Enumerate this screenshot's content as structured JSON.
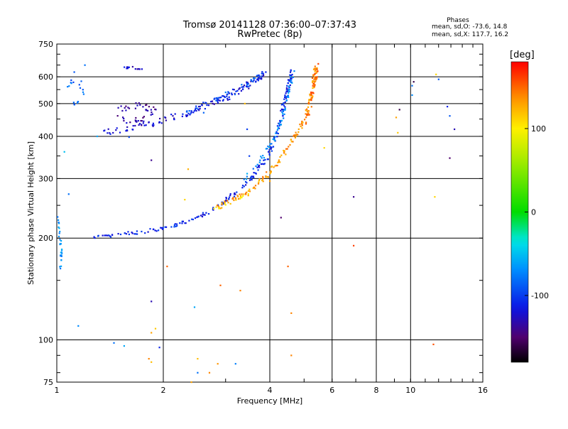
{
  "chart_data": {
    "type": "scatter",
    "title": "Tromsø 20141128 07:36:00–07:37:43",
    "subtitle": "RwPretec (8p)",
    "xlabel": "Frequency [MHz]",
    "ylabel": "Stationary phase Virtual Height [km]",
    "xscale": "log",
    "yscale": "log",
    "xlim": [
      1,
      16
    ],
    "ylim": [
      75,
      750
    ],
    "x_ticks": [
      1,
      2,
      4,
      6,
      8,
      10,
      16
    ],
    "y_ticks": [
      75,
      100,
      200,
      300,
      400,
      500,
      600,
      750
    ],
    "grid": true,
    "colorbar": {
      "label": "[deg]",
      "range": [
        -180,
        180
      ],
      "ticks": [
        100,
        0,
        -100
      ]
    },
    "phase_stats": {
      "title": "Phases",
      "o_mode": "mean, sd,O: -73.6, 14.8",
      "x_mode": "mean, sd,X: 117.7, 16.2"
    },
    "traces": [
      {
        "name": "",
        "phase": -110,
        "spread_f": 0.012,
        "spread_h": 0.012,
        "per_segment": 14,
        "points": [
          [
            1.25,
            200
          ],
          [
            1.5,
            205
          ],
          [
            1.8,
            210
          ],
          [
            2.1,
            216
          ],
          [
            2.4,
            226
          ],
          [
            2.7,
            240
          ],
          [
            3.0,
            258
          ],
          [
            3.3,
            280
          ],
          [
            3.6,
            305
          ],
          [
            3.9,
            340
          ],
          [
            4.1,
            380
          ],
          [
            4.25,
            430
          ],
          [
            4.35,
            480
          ],
          [
            4.45,
            530
          ],
          [
            4.55,
            580
          ],
          [
            4.6,
            630
          ]
        ]
      },
      {
        "name": "",
        "phase": -70,
        "spread_f": 0.01,
        "spread_h": 0.012,
        "per_segment": 10,
        "points": [
          [
            3.4,
            300
          ],
          [
            3.8,
            345
          ],
          [
            4.1,
            390
          ],
          [
            4.3,
            440
          ],
          [
            4.45,
            500
          ],
          [
            4.55,
            560
          ],
          [
            4.65,
            620
          ]
        ]
      },
      {
        "name": "",
        "phase": 135,
        "spread_f": 0.012,
        "spread_h": 0.012,
        "per_segment": 14,
        "points": [
          [
            2.8,
            248
          ],
          [
            3.2,
            262
          ],
          [
            3.6,
            282
          ],
          [
            3.9,
            305
          ],
          [
            4.2,
            335
          ],
          [
            4.5,
            370
          ],
          [
            4.8,
            410
          ],
          [
            5.05,
            460
          ],
          [
            5.2,
            510
          ],
          [
            5.3,
            560
          ],
          [
            5.35,
            600
          ],
          [
            5.4,
            640
          ]
        ]
      },
      {
        "name": "",
        "phase": 112,
        "spread_f": 0.01,
        "spread_h": 0.01,
        "per_segment": 8,
        "points": [
          [
            2.75,
            242
          ],
          [
            3.1,
            255
          ],
          [
            3.5,
            272
          ]
        ]
      },
      {
        "name": "",
        "phase": 150,
        "spread_f": 0.012,
        "spread_h": 0.02,
        "per_segment": 8,
        "points": [
          [
            5.05,
            440
          ],
          [
            5.2,
            500
          ],
          [
            5.3,
            550
          ],
          [
            5.4,
            600
          ],
          [
            5.45,
            650
          ]
        ]
      },
      {
        "name": "",
        "phase": -120,
        "spread_f": 0.015,
        "spread_h": 0.02,
        "per_segment": 14,
        "points": [
          [
            1.35,
            410
          ],
          [
            1.6,
            425
          ],
          [
            1.9,
            440
          ],
          [
            2.2,
            460
          ],
          [
            2.5,
            480
          ],
          [
            2.8,
            505
          ],
          [
            3.1,
            530
          ],
          [
            3.4,
            560
          ],
          [
            3.7,
            590
          ],
          [
            3.9,
            620
          ]
        ]
      },
      {
        "name": "",
        "phase": -95,
        "spread_f": 0.012,
        "spread_h": 0.02,
        "per_segment": 10,
        "points": [
          [
            2.3,
            470
          ],
          [
            2.6,
            495
          ],
          [
            2.9,
            515
          ],
          [
            3.2,
            545
          ],
          [
            3.5,
            575
          ],
          [
            3.8,
            610
          ]
        ]
      },
      {
        "name": "",
        "phase": -135,
        "spread_f": 0.02,
        "spread_h": 0.025,
        "per_segment": 12,
        "points": [
          [
            1.5,
            480
          ],
          [
            1.7,
            500
          ],
          [
            1.9,
            470
          ],
          [
            1.7,
            440
          ],
          [
            1.5,
            450
          ]
        ]
      },
      {
        "name": "",
        "phase": -125,
        "spread_f": 0.01,
        "spread_h": 0.008,
        "per_segment": 6,
        "points": [
          [
            1.5,
            640
          ],
          [
            1.65,
            638
          ],
          [
            1.75,
            630
          ]
        ]
      },
      {
        "name": "",
        "phase": -65,
        "spread_f": 0.006,
        "spread_h": 0.03,
        "per_segment": 10,
        "points": [
          [
            1.01,
            230
          ],
          [
            1.02,
            200
          ],
          [
            1.03,
            180
          ],
          [
            1.02,
            160
          ]
        ]
      },
      {
        "name": "",
        "phase": -85,
        "spread_f": 0.01,
        "spread_h": 0.02,
        "per_segment": 6,
        "points": [
          [
            1.05,
            550
          ],
          [
            1.15,
            600
          ],
          [
            1.2,
            520
          ],
          [
            1.1,
            500
          ]
        ]
      }
    ],
    "scatter_points": [
      [
        1.3,
        400,
        -60
      ],
      [
        1.05,
        360,
        -50
      ],
      [
        1.08,
        270,
        -80
      ],
      [
        1.12,
        620,
        -90
      ],
      [
        1.45,
        98,
        -80
      ],
      [
        1.55,
        96,
        -60
      ],
      [
        1.85,
        105,
        130
      ],
      [
        1.9,
        108,
        115
      ],
      [
        1.82,
        88,
        140
      ],
      [
        1.85,
        86,
        120
      ],
      [
        1.95,
        95,
        -110
      ],
      [
        1.85,
        130,
        -130
      ],
      [
        1.85,
        340,
        -140
      ],
      [
        2.05,
        165,
        150
      ],
      [
        2.3,
        260,
        110
      ],
      [
        2.35,
        320,
        125
      ],
      [
        2.4,
        75,
        130
      ],
      [
        2.5,
        88,
        120
      ],
      [
        2.5,
        80,
        -80
      ],
      [
        2.6,
        470,
        -85
      ],
      [
        2.7,
        80,
        140
      ],
      [
        2.9,
        245,
        130
      ],
      [
        2.9,
        145,
        150
      ],
      [
        3.2,
        85,
        -75
      ],
      [
        3.3,
        140,
        140
      ],
      [
        2.85,
        85,
        135
      ],
      [
        2.45,
        125,
        -60
      ],
      [
        3.5,
        350,
        -100
      ],
      [
        3.4,
        500,
        120
      ],
      [
        4.0,
        295,
        130
      ],
      [
        4.3,
        230,
        -150
      ],
      [
        4.5,
        165,
        150
      ],
      [
        4.6,
        120,
        140
      ],
      [
        4.6,
        90,
        140
      ],
      [
        5.7,
        370,
        110
      ],
      [
        6.9,
        265,
        -140
      ],
      [
        6.9,
        190,
        160
      ],
      [
        9.3,
        480,
        -160
      ],
      [
        9.1,
        455,
        130
      ],
      [
        9.2,
        410,
        115
      ],
      [
        10.1,
        565,
        -80
      ],
      [
        10.1,
        530,
        -70
      ],
      [
        10.2,
        580,
        -160
      ],
      [
        11.8,
        610,
        110
      ],
      [
        12.0,
        590,
        -90
      ],
      [
        11.7,
        265,
        110
      ],
      [
        11.6,
        97,
        155
      ],
      [
        12.9,
        460,
        -90
      ],
      [
        12.9,
        345,
        -150
      ],
      [
        13.3,
        420,
        -130
      ],
      [
        12.7,
        490,
        -110
      ],
      [
        1.15,
        110,
        -70
      ],
      [
        1.6,
        640,
        -110
      ],
      [
        1.2,
        650,
        -80
      ],
      [
        3.45,
        420,
        -100
      ],
      [
        3.0,
        540,
        -75
      ],
      [
        1.6,
        398,
        -95
      ]
    ]
  }
}
